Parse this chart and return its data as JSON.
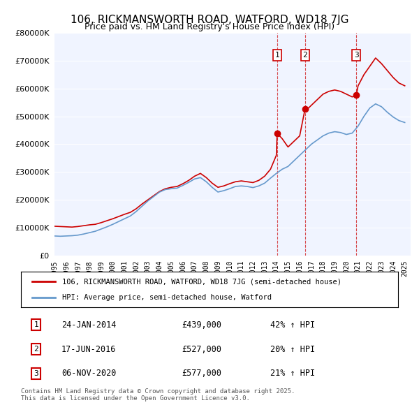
{
  "title1": "106, RICKMANSWORTH ROAD, WATFORD, WD18 7JG",
  "title2": "Price paid vs. HM Land Registry's House Price Index (HPI)",
  "legend_line1": "106, RICKMANSWORTH ROAD, WATFORD, WD18 7JG (semi-detached house)",
  "legend_line2": "HPI: Average price, semi-detached house, Watford",
  "footer": "Contains HM Land Registry data © Crown copyright and database right 2025.\nThis data is licensed under the Open Government Licence v3.0.",
  "transactions": [
    {
      "num": 1,
      "date": "24-JAN-2014",
      "price": "£439,000",
      "hpi": "42% ↑ HPI",
      "year": 2014.07,
      "value": 439000
    },
    {
      "num": 2,
      "date": "17-JUN-2016",
      "price": "£527,000",
      "hpi": "20% ↑ HPI",
      "year": 2016.46,
      "value": 527000
    },
    {
      "num": 3,
      "date": "06-NOV-2020",
      "price": "£577,000",
      "hpi": "21% ↑ HPI",
      "year": 2020.85,
      "value": 577000
    }
  ],
  "red_color": "#cc0000",
  "blue_color": "#6699cc",
  "vline_color": "#cc0000",
  "background_plot": "#f0f4ff",
  "ylim": [
    0,
    800000
  ],
  "xlim_start": 1995.0,
  "xlim_end": 2025.5,
  "red_data": {
    "years": [
      1995.0,
      1995.5,
      1996.0,
      1996.5,
      1997.0,
      1997.5,
      1998.0,
      1998.5,
      1999.0,
      1999.5,
      2000.0,
      2000.5,
      2001.0,
      2001.5,
      2002.0,
      2002.5,
      2003.0,
      2003.5,
      2004.0,
      2004.5,
      2005.0,
      2005.5,
      2006.0,
      2006.5,
      2007.0,
      2007.5,
      2008.0,
      2008.5,
      2009.0,
      2009.5,
      2010.0,
      2010.5,
      2011.0,
      2011.5,
      2012.0,
      2012.5,
      2013.0,
      2013.5,
      2014.0,
      2014.07,
      2014.5,
      2015.0,
      2015.5,
      2016.0,
      2016.46,
      2016.5,
      2017.0,
      2017.5,
      2018.0,
      2018.5,
      2019.0,
      2019.5,
      2020.0,
      2020.5,
      2020.85,
      2021.0,
      2021.5,
      2022.0,
      2022.5,
      2023.0,
      2023.5,
      2024.0,
      2024.5,
      2025.0
    ],
    "values": [
      105000,
      104000,
      103000,
      102000,
      104000,
      107000,
      110000,
      112000,
      118000,
      125000,
      132000,
      140000,
      148000,
      155000,
      168000,
      185000,
      200000,
      215000,
      230000,
      240000,
      245000,
      248000,
      258000,
      270000,
      285000,
      295000,
      280000,
      260000,
      245000,
      250000,
      258000,
      265000,
      268000,
      265000,
      262000,
      270000,
      285000,
      310000,
      360000,
      439000,
      420000,
      390000,
      410000,
      430000,
      527000,
      520000,
      540000,
      560000,
      580000,
      590000,
      595000,
      590000,
      580000,
      570000,
      577000,
      610000,
      650000,
      680000,
      710000,
      690000,
      665000,
      640000,
      620000,
      610000
    ]
  },
  "blue_data": {
    "years": [
      1995.0,
      1995.5,
      1996.0,
      1996.5,
      1997.0,
      1997.5,
      1998.0,
      1998.5,
      1999.0,
      1999.5,
      2000.0,
      2000.5,
      2001.0,
      2001.5,
      2002.0,
      2002.5,
      2003.0,
      2003.5,
      2004.0,
      2004.5,
      2005.0,
      2005.5,
      2006.0,
      2006.5,
      2007.0,
      2007.5,
      2008.0,
      2008.5,
      2009.0,
      2009.5,
      2010.0,
      2010.5,
      2011.0,
      2011.5,
      2012.0,
      2012.5,
      2013.0,
      2013.5,
      2014.0,
      2014.5,
      2015.0,
      2015.5,
      2016.0,
      2016.5,
      2017.0,
      2017.5,
      2018.0,
      2018.5,
      2019.0,
      2019.5,
      2020.0,
      2020.5,
      2021.0,
      2021.5,
      2022.0,
      2022.5,
      2023.0,
      2023.5,
      2024.0,
      2024.5,
      2025.0
    ],
    "values": [
      70000,
      69000,
      70000,
      71000,
      73000,
      77000,
      82000,
      87000,
      95000,
      103000,
      112000,
      122000,
      132000,
      142000,
      158000,
      177000,
      196000,
      212000,
      228000,
      237000,
      240000,
      242000,
      252000,
      263000,
      275000,
      280000,
      265000,
      245000,
      228000,
      233000,
      240000,
      248000,
      250000,
      248000,
      244000,
      250000,
      260000,
      278000,
      295000,
      310000,
      320000,
      340000,
      360000,
      380000,
      400000,
      415000,
      430000,
      440000,
      445000,
      442000,
      435000,
      440000,
      465000,
      500000,
      530000,
      545000,
      535000,
      515000,
      498000,
      485000,
      478000
    ]
  }
}
